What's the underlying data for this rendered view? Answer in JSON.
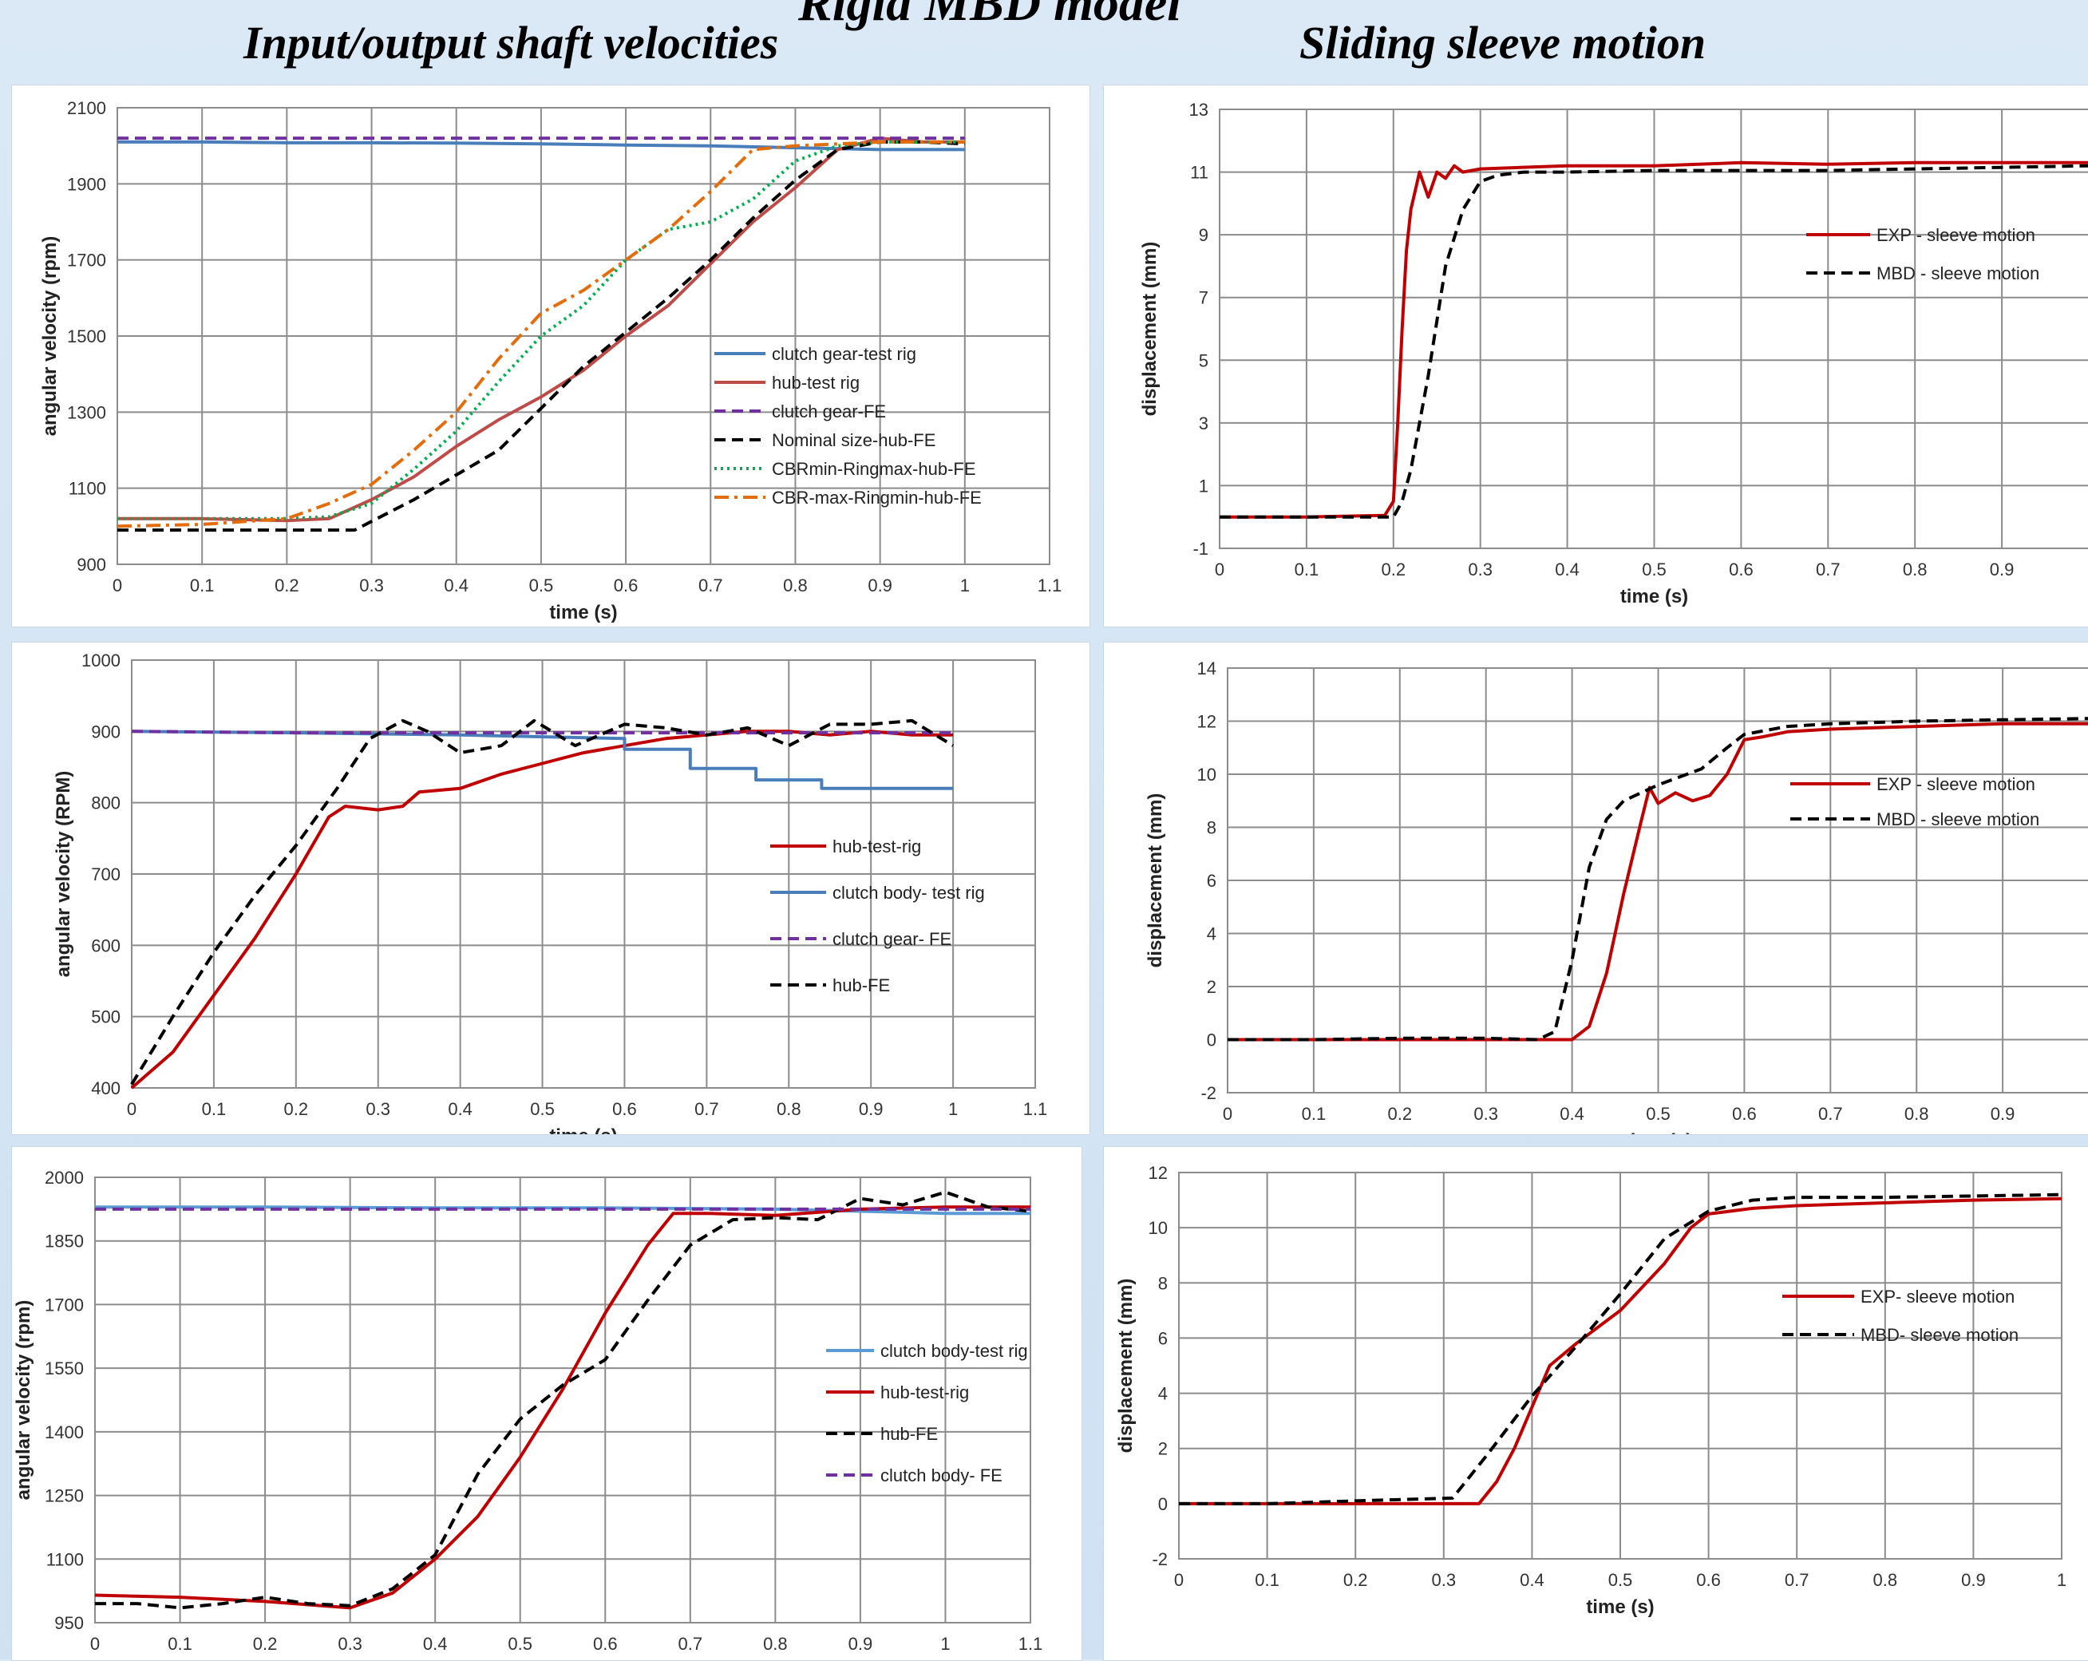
{
  "header": {
    "main_title": "Rigid MBD model",
    "left_title": "Input/output shaft velocities",
    "right_title": "Sliding sleeve motion"
  },
  "chart_data": [
    {
      "id": "vel1",
      "type": "line",
      "xlabel": "time (s)",
      "ylabel": "angular velocity (rpm)",
      "xlim": [
        0,
        1.1
      ],
      "ylim": [
        900,
        2100
      ],
      "xticks": [
        0,
        0.1,
        0.2,
        0.3,
        0.4,
        0.5,
        0.6,
        0.7,
        0.8,
        0.9,
        1,
        1.1
      ],
      "yticks": [
        900,
        1100,
        1300,
        1500,
        1700,
        1900,
        2100
      ],
      "grid": true,
      "legend_position": "center-right",
      "series": [
        {
          "name": "clutch gear-test rig",
          "color": "#4a7ebb",
          "dash": "solid",
          "x": [
            0,
            0.1,
            0.2,
            0.3,
            0.4,
            0.5,
            0.6,
            0.7,
            0.8,
            0.9,
            1.0
          ],
          "y": [
            2010,
            2010,
            2008,
            2008,
            2007,
            2005,
            2002,
            2000,
            1995,
            1990,
            1990
          ]
        },
        {
          "name": "hub-test rig",
          "color": "#be4b48",
          "dash": "solid",
          "x": [
            0,
            0.1,
            0.2,
            0.25,
            0.3,
            0.35,
            0.4,
            0.45,
            0.5,
            0.55,
            0.6,
            0.65,
            0.7,
            0.75,
            0.8,
            0.85,
            0.9,
            0.95,
            1.0
          ],
          "y": [
            1020,
            1020,
            1015,
            1020,
            1070,
            1130,
            1210,
            1280,
            1340,
            1410,
            1500,
            1580,
            1690,
            1800,
            1890,
            1990,
            2020,
            2010,
            2010
          ]
        },
        {
          "name": "clutch gear-FE",
          "color": "#7030a0",
          "dash": "dashed",
          "x": [
            0,
            0.2,
            0.4,
            0.6,
            0.8,
            1.0
          ],
          "y": [
            2020,
            2020,
            2020,
            2020,
            2020,
            2020
          ]
        },
        {
          "name": "Nominal size-hub-FE",
          "color": "#000000",
          "dash": "dashed",
          "x": [
            0,
            0.1,
            0.2,
            0.28,
            0.35,
            0.45,
            0.55,
            0.6,
            0.65,
            0.7,
            0.75,
            0.8,
            0.85,
            0.9,
            0.95,
            1.0
          ],
          "y": [
            990,
            990,
            990,
            990,
            1070,
            1200,
            1420,
            1510,
            1600,
            1700,
            1810,
            1910,
            1990,
            2010,
            2010,
            2005
          ]
        },
        {
          "name": "CBRmin-Ringmax-hub-FE",
          "color": "#00b050",
          "dash": "dotted",
          "x": [
            0,
            0.1,
            0.2,
            0.25,
            0.3,
            0.35,
            0.4,
            0.45,
            0.5,
            0.55,
            0.6,
            0.65,
            0.7,
            0.75,
            0.8,
            0.85,
            0.9,
            0.95,
            1.0
          ],
          "y": [
            1020,
            1020,
            1020,
            1025,
            1060,
            1150,
            1250,
            1380,
            1500,
            1580,
            1700,
            1780,
            1800,
            1860,
            1960,
            2000,
            2010,
            2010,
            2010
          ]
        },
        {
          "name": "CBR-max-Ringmin-hub-FE",
          "color": "#e46c0a",
          "dash": "dashdot",
          "x": [
            0,
            0.1,
            0.2,
            0.25,
            0.3,
            0.35,
            0.4,
            0.45,
            0.5,
            0.55,
            0.6,
            0.65,
            0.7,
            0.75,
            0.8,
            0.85,
            0.9,
            0.95,
            1.0
          ],
          "y": [
            1000,
            1005,
            1020,
            1060,
            1110,
            1200,
            1300,
            1440,
            1560,
            1620,
            1700,
            1780,
            1880,
            1990,
            2000,
            2005,
            2010,
            2010,
            2010
          ]
        }
      ]
    },
    {
      "id": "sleeve1",
      "type": "line",
      "xlabel": "time (s)",
      "ylabel": "displacement (mm)",
      "xlim": [
        0,
        1.0
      ],
      "ylim": [
        -1,
        13
      ],
      "xticks": [
        0,
        0.1,
        0.2,
        0.3,
        0.4,
        0.5,
        0.6,
        0.7,
        0.8,
        0.9
      ],
      "yticks": [
        -1,
        1,
        3,
        5,
        7,
        9,
        11,
        13
      ],
      "grid": true,
      "legend_position": "right",
      "series": [
        {
          "name": "EXP - sleeve motion",
          "color": "#c00000",
          "dash": "solid",
          "x": [
            0,
            0.1,
            0.19,
            0.2,
            0.205,
            0.21,
            0.215,
            0.22,
            0.23,
            0.24,
            0.25,
            0.26,
            0.27,
            0.28,
            0.3,
            0.4,
            0.5,
            0.6,
            0.7,
            0.8,
            0.9,
            1.0
          ],
          "y": [
            0,
            0,
            0.05,
            0.5,
            3,
            6,
            8.5,
            9.8,
            11,
            10.2,
            11,
            10.8,
            11.2,
            11,
            11.1,
            11.2,
            11.2,
            11.3,
            11.25,
            11.3,
            11.3,
            11.3
          ]
        },
        {
          "name": "MBD - sleeve motion",
          "color": "#000000",
          "dash": "dashed",
          "x": [
            0,
            0.1,
            0.2,
            0.21,
            0.22,
            0.24,
            0.26,
            0.28,
            0.3,
            0.32,
            0.35,
            0.4,
            0.5,
            0.6,
            0.7,
            0.8,
            0.9,
            1.0
          ],
          "y": [
            0,
            0,
            0,
            0.5,
            1.5,
            4.5,
            8,
            9.8,
            10.7,
            10.9,
            11,
            11,
            11.05,
            11.05,
            11.05,
            11.1,
            11.15,
            11.2
          ]
        }
      ]
    },
    {
      "id": "vel2",
      "type": "line",
      "xlabel": "time (s)",
      "ylabel": "angular velocity (RPM)",
      "xlim": [
        0,
        1.1
      ],
      "ylim": [
        400,
        1000
      ],
      "xticks": [
        0,
        0.1,
        0.2,
        0.3,
        0.4,
        0.5,
        0.6,
        0.7,
        0.8,
        0.9,
        1,
        1.1
      ],
      "yticks": [
        400,
        500,
        600,
        700,
        800,
        900,
        1000
      ],
      "grid": true,
      "legend_position": "right",
      "series": [
        {
          "name": "hub-test-rig",
          "color": "#c00000",
          "dash": "solid",
          "x": [
            0,
            0.05,
            0.1,
            0.15,
            0.2,
            0.24,
            0.26,
            0.3,
            0.33,
            0.35,
            0.4,
            0.45,
            0.5,
            0.55,
            0.6,
            0.65,
            0.7,
            0.75,
            0.8,
            0.85,
            0.9,
            0.95,
            1.0
          ],
          "y": [
            400,
            450,
            530,
            610,
            700,
            780,
            795,
            790,
            795,
            815,
            820,
            840,
            855,
            870,
            880,
            890,
            895,
            900,
            900,
            895,
            900,
            895,
            895
          ]
        },
        {
          "name": "clutch body- test rig",
          "color": "#4a7ebb",
          "dash": "solid",
          "x": [
            0,
            0.2,
            0.4,
            0.6,
            0.6,
            0.68,
            0.68,
            0.76,
            0.76,
            0.84,
            0.84,
            1.0
          ],
          "y": [
            900,
            898,
            895,
            890,
            875,
            875,
            848,
            848,
            832,
            832,
            820,
            820
          ]
        },
        {
          "name": "clutch gear- FE",
          "color": "#7030a0",
          "dash": "dashed",
          "x": [
            0,
            0.2,
            0.4,
            0.6,
            0.8,
            1.0
          ],
          "y": [
            900,
            898,
            898,
            898,
            898,
            898
          ]
        },
        {
          "name": "hub-FE",
          "color": "#000000",
          "dash": "dashed",
          "x": [
            0,
            0.05,
            0.1,
            0.15,
            0.2,
            0.25,
            0.29,
            0.33,
            0.36,
            0.4,
            0.45,
            0.49,
            0.54,
            0.6,
            0.65,
            0.7,
            0.75,
            0.8,
            0.85,
            0.9,
            0.95,
            1.0
          ],
          "y": [
            405,
            500,
            590,
            670,
            740,
            820,
            890,
            915,
            900,
            870,
            880,
            915,
            880,
            910,
            905,
            895,
            905,
            880,
            910,
            910,
            915,
            880
          ]
        }
      ]
    },
    {
      "id": "sleeve2",
      "type": "line",
      "xlabel": "time (s)",
      "ylabel": "displacement (mm)",
      "xlim": [
        0,
        1.0
      ],
      "ylim": [
        -2,
        14
      ],
      "xticks": [
        0,
        0.1,
        0.2,
        0.3,
        0.4,
        0.5,
        0.6,
        0.7,
        0.8,
        0.9
      ],
      "yticks": [
        -2,
        0,
        2,
        4,
        6,
        8,
        10,
        12,
        14
      ],
      "grid": true,
      "legend_position": "right",
      "series": [
        {
          "name": "EXP - sleeve motion",
          "color": "#c00000",
          "dash": "solid",
          "x": [
            0,
            0.1,
            0.2,
            0.3,
            0.4,
            0.42,
            0.44,
            0.46,
            0.48,
            0.49,
            0.5,
            0.52,
            0.54,
            0.56,
            0.58,
            0.6,
            0.62,
            0.65,
            0.7,
            0.8,
            0.9,
            1.0
          ],
          "y": [
            0,
            0,
            0,
            0,
            0,
            0.5,
            2.5,
            5.5,
            8.2,
            9.5,
            8.9,
            9.3,
            9,
            9.2,
            10,
            11.3,
            11.4,
            11.6,
            11.7,
            11.8,
            11.9,
            11.9
          ]
        },
        {
          "name": "MBD - sleeve motion",
          "color": "#000000",
          "dash": "dashed",
          "x": [
            0,
            0.1,
            0.2,
            0.3,
            0.36,
            0.38,
            0.4,
            0.42,
            0.44,
            0.46,
            0.5,
            0.55,
            0.58,
            0.6,
            0.65,
            0.7,
            0.8,
            0.9,
            1.0
          ],
          "y": [
            0,
            0,
            0.05,
            0.05,
            0,
            0.3,
            3,
            6.5,
            8.3,
            9,
            9.6,
            10.2,
            11,
            11.5,
            11.8,
            11.9,
            12,
            12.05,
            12.1
          ]
        }
      ]
    },
    {
      "id": "vel3",
      "type": "line",
      "xlabel": "",
      "ylabel": "angular velocity (rpm)",
      "xlim": [
        0,
        1.1
      ],
      "ylim": [
        950,
        2000
      ],
      "xticks": [
        0,
        0.1,
        0.2,
        0.3,
        0.4,
        0.5,
        0.6,
        0.7,
        0.8,
        0.9,
        1,
        1.1
      ],
      "yticks": [
        950,
        1100,
        1250,
        1400,
        1550,
        1700,
        1850,
        2000
      ],
      "grid": true,
      "legend_position": "right",
      "series": [
        {
          "name": "clutch body-test rig",
          "color": "#5b9bd5",
          "dash": "solid",
          "x": [
            0,
            0.2,
            0.4,
            0.6,
            0.8,
            0.9,
            1.0,
            1.1
          ],
          "y": [
            1930,
            1930,
            1928,
            1928,
            1925,
            1920,
            1915,
            1915
          ]
        },
        {
          "name": "hub-test-rig",
          "color": "#c00000",
          "dash": "solid",
          "x": [
            0,
            0.1,
            0.2,
            0.3,
            0.35,
            0.4,
            0.45,
            0.5,
            0.55,
            0.6,
            0.65,
            0.68,
            0.72,
            0.8,
            0.9,
            1.0,
            1.1
          ],
          "y": [
            1015,
            1010,
            1000,
            985,
            1020,
            1100,
            1200,
            1340,
            1500,
            1680,
            1840,
            1915,
            1915,
            1910,
            1925,
            1930,
            1930
          ]
        },
        {
          "name": "hub-FE",
          "color": "#000000",
          "dash": "dashed",
          "x": [
            0,
            0.05,
            0.1,
            0.15,
            0.2,
            0.25,
            0.3,
            0.35,
            0.4,
            0.45,
            0.5,
            0.55,
            0.6,
            0.65,
            0.7,
            0.75,
            0.8,
            0.85,
            0.9,
            0.95,
            1.0,
            1.05,
            1.1
          ],
          "y": [
            995,
            995,
            985,
            995,
            1010,
            995,
            990,
            1030,
            1110,
            1300,
            1430,
            1510,
            1570,
            1710,
            1840,
            1900,
            1905,
            1900,
            1950,
            1935,
            1965,
            1930,
            1920
          ]
        },
        {
          "name": "clutch body- FE",
          "color": "#7030a0",
          "dash": "dashed",
          "x": [
            0,
            0.2,
            0.4,
            0.6,
            0.8,
            1.0,
            1.1
          ],
          "y": [
            1925,
            1925,
            1925,
            1925,
            1925,
            1925,
            1925
          ]
        }
      ]
    },
    {
      "id": "sleeve3",
      "type": "line",
      "xlabel": "time (s)",
      "ylabel": "displacement (mm)",
      "xlim": [
        0,
        1.0
      ],
      "ylim": [
        -2,
        12
      ],
      "xticks": [
        0,
        0.1,
        0.2,
        0.3,
        0.4,
        0.5,
        0.6,
        0.7,
        0.8,
        0.9,
        1
      ],
      "yticks": [
        -2,
        0,
        2,
        4,
        6,
        8,
        10,
        12
      ],
      "grid": true,
      "legend_position": "right",
      "series": [
        {
          "name": "EXP- sleeve motion",
          "color": "#c00000",
          "dash": "solid",
          "x": [
            0,
            0.1,
            0.2,
            0.3,
            0.34,
            0.36,
            0.38,
            0.4,
            0.42,
            0.45,
            0.5,
            0.55,
            0.58,
            0.6,
            0.65,
            0.7,
            0.8,
            0.9,
            1.0
          ],
          "y": [
            0,
            0,
            0,
            0,
            0,
            0.8,
            2,
            3.5,
            5,
            5.8,
            7,
            8.7,
            10,
            10.5,
            10.7,
            10.8,
            10.9,
            11,
            11.05
          ]
        },
        {
          "name": "MBD- sleeve motion",
          "color": "#000000",
          "dash": "dashed",
          "x": [
            0,
            0.1,
            0.2,
            0.31,
            0.35,
            0.4,
            0.45,
            0.5,
            0.55,
            0.6,
            0.65,
            0.7,
            0.8,
            0.9,
            1.0
          ],
          "y": [
            0,
            0,
            0.1,
            0.2,
            1.8,
            3.9,
            5.7,
            7.6,
            9.6,
            10.6,
            11,
            11.1,
            11.1,
            11.15,
            11.2
          ]
        }
      ]
    }
  ]
}
